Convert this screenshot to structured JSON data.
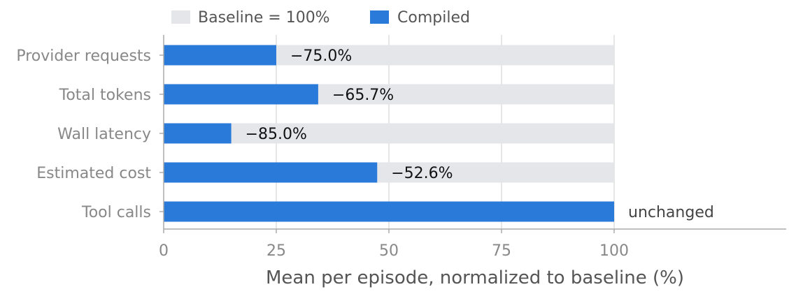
{
  "chart_data": {
    "type": "bar",
    "orientation": "horizontal",
    "categories": [
      "Provider requests",
      "Total tokens",
      "Wall latency",
      "Estimated cost",
      "Tool calls"
    ],
    "series": [
      {
        "name": "Baseline = 100%",
        "color": "#e4e6ea",
        "values": [
          100,
          100,
          100,
          100,
          100
        ]
      },
      {
        "name": "Compiled",
        "color": "#2a7ad9",
        "values": [
          25.0,
          34.3,
          15.0,
          47.4,
          100
        ]
      }
    ],
    "data_labels": [
      "−75.0%",
      "−65.7%",
      "−85.0%",
      "−52.6%",
      "unchanged"
    ],
    "xlabel": "Mean per episode, normalized to baseline (%)",
    "ylabel": "",
    "xlim": [
      0,
      138
    ],
    "xticks": [
      0,
      25,
      50,
      75,
      100
    ],
    "xtick_labels": [
      "0",
      "25",
      "50",
      "75",
      "100"
    ],
    "grid": "vertical",
    "legend_position": "top"
  }
}
